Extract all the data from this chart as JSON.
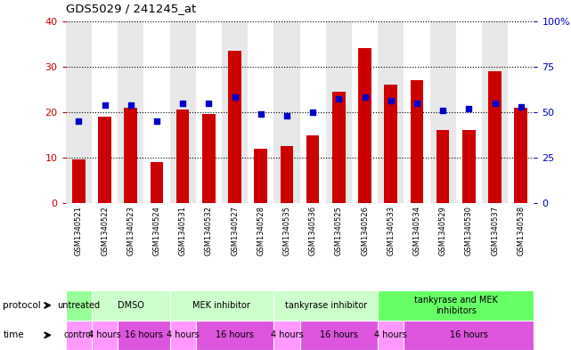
{
  "title": "GDS5029 / 241245_at",
  "samples": [
    "GSM1340521",
    "GSM1340522",
    "GSM1340523",
    "GSM1340524",
    "GSM1340531",
    "GSM1340532",
    "GSM1340527",
    "GSM1340528",
    "GSM1340535",
    "GSM1340536",
    "GSM1340525",
    "GSM1340526",
    "GSM1340533",
    "GSM1340534",
    "GSM1340529",
    "GSM1340530",
    "GSM1340537",
    "GSM1340538"
  ],
  "counts": [
    9.5,
    19.0,
    21.0,
    9.0,
    20.5,
    19.5,
    33.5,
    12.0,
    12.5,
    14.8,
    24.5,
    34.0,
    26.0,
    27.0,
    16.0,
    16.0,
    29.0,
    21.0
  ],
  "percentile_ranks": [
    45,
    54,
    54,
    45,
    55,
    55,
    58,
    49,
    48,
    50,
    57,
    58,
    56,
    55,
    51,
    52,
    55,
    53
  ],
  "bar_color": "#cc0000",
  "dot_color": "#0000cc",
  "ylim_left": [
    0,
    40
  ],
  "ylim_right": [
    0,
    100
  ],
  "yticks_left": [
    0,
    10,
    20,
    30,
    40
  ],
  "yticks_right": [
    0,
    25,
    50,
    75,
    100
  ],
  "ytick_labels_right": [
    "0",
    "25",
    "50",
    "75",
    "100%"
  ],
  "bg_colors": [
    "#e8e8e8",
    "#ffffff"
  ],
  "bar_color_left_axis": "#cc0000",
  "dot_color_right_axis": "#0000cc",
  "proto_groups": [
    {
      "label": "untreated",
      "start": 0,
      "end": 1,
      "color": "#99ff99"
    },
    {
      "label": "DMSO",
      "start": 1,
      "end": 4,
      "color": "#ccffcc"
    },
    {
      "label": "MEK inhibitor",
      "start": 4,
      "end": 8,
      "color": "#ccffcc"
    },
    {
      "label": "tankyrase inhibitor",
      "start": 8,
      "end": 12,
      "color": "#ccffcc"
    },
    {
      "label": "tankyrase and MEK\ninhibitors",
      "start": 12,
      "end": 18,
      "color": "#66ff66"
    }
  ],
  "time_groups": [
    {
      "label": "control",
      "start": 0,
      "end": 1,
      "color": "#ff99ff"
    },
    {
      "label": "4 hours",
      "start": 1,
      "end": 2,
      "color": "#ff99ff"
    },
    {
      "label": "16 hours",
      "start": 2,
      "end": 4,
      "color": "#dd55dd"
    },
    {
      "label": "4 hours",
      "start": 4,
      "end": 5,
      "color": "#ff99ff"
    },
    {
      "label": "16 hours",
      "start": 5,
      "end": 8,
      "color": "#dd55dd"
    },
    {
      "label": "4 hours",
      "start": 8,
      "end": 9,
      "color": "#ff99ff"
    },
    {
      "label": "16 hours",
      "start": 9,
      "end": 12,
      "color": "#dd55dd"
    },
    {
      "label": "4 hours",
      "start": 12,
      "end": 13,
      "color": "#ff99ff"
    },
    {
      "label": "16 hours",
      "start": 13,
      "end": 18,
      "color": "#dd55dd"
    }
  ]
}
